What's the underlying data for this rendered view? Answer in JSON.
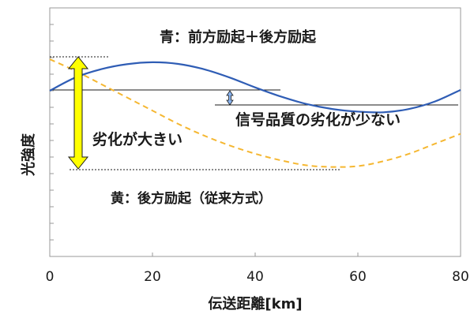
{
  "chart_data": {
    "type": "line",
    "xlabel": "伝送距離[km]",
    "ylabel": "光強度",
    "xlim": [
      0,
      80
    ],
    "ylim": [
      -10,
      5
    ],
    "x_ticks": [
      0,
      20,
      40,
      60,
      80
    ],
    "grid": false,
    "series": [
      {
        "name": "青：前方励起＋後方励起",
        "color": "#2f5db5",
        "style": "solid",
        "x": [
          0,
          5,
          10,
          15,
          20,
          25,
          30,
          35,
          40,
          45,
          50,
          55,
          60,
          65,
          70,
          75,
          80
        ],
        "y": [
          0,
          0.8,
          1.3,
          1.6,
          1.72,
          1.62,
          1.3,
          0.8,
          0.2,
          -0.35,
          -0.8,
          -1.1,
          -1.26,
          -1.3,
          -1.1,
          -0.65,
          0.05
        ]
      },
      {
        "name": "黄：後方励起（従来方式）",
        "color": "#f5b731",
        "style": "dashed",
        "x": [
          0,
          5,
          10,
          15,
          20,
          25,
          30,
          35,
          40,
          45,
          50,
          55,
          60,
          65,
          70,
          75,
          80
        ],
        "y": [
          1.9,
          1.2,
          0.4,
          -0.4,
          -1.2,
          -2.0,
          -2.7,
          -3.3,
          -3.8,
          -4.2,
          -4.5,
          -4.6,
          -4.55,
          -4.25,
          -3.8,
          -3.2,
          -2.6
        ]
      }
    ],
    "annotations": {
      "blue_label": "青：前方励起＋後方励起",
      "yellow_label": "黄：後方励起（従来方式）",
      "degradation_large": "劣化が大きい",
      "degradation_small": "信号品質の劣化が少ない"
    }
  }
}
